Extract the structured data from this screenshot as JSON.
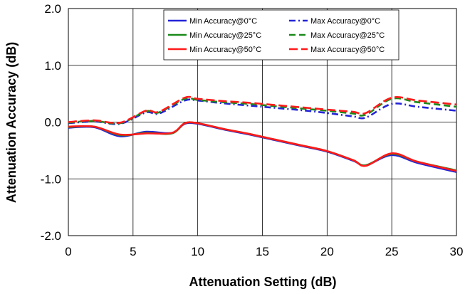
{
  "chart_data": {
    "type": "line",
    "title": "",
    "xlabel": "Attenuation Setting (dB)",
    "ylabel": "Attenuation Accuracy (dB)",
    "xlim": [
      0,
      30
    ],
    "ylim": [
      -2,
      2
    ],
    "xticks": [
      "0",
      "5",
      "10",
      "15",
      "20",
      "25",
      "30"
    ],
    "yticks": [
      "2.0",
      "1.0",
      "0.0",
      "-1.0",
      "-2.0"
    ],
    "grid": true,
    "legend_position": "top-right",
    "series": [
      {
        "name": "Min Accuracy@0°C",
        "color": "#2424d8",
        "dash": "solid",
        "x": [
          0,
          2,
          4,
          6,
          8,
          9,
          10,
          12,
          14,
          16,
          18,
          20,
          22,
          23,
          25,
          27,
          30
        ],
        "y": [
          -0.1,
          -0.09,
          -0.25,
          -0.17,
          -0.19,
          -0.03,
          -0.03,
          -0.13,
          -0.22,
          -0.32,
          -0.42,
          -0.52,
          -0.68,
          -0.76,
          -0.58,
          -0.72,
          -0.88
        ]
      },
      {
        "name": "Min Accuracy@25°C",
        "color": "#1a8a1a",
        "dash": "solid",
        "x": [
          0,
          2,
          4,
          6,
          8,
          9,
          10,
          12,
          14,
          16,
          18,
          20,
          22,
          23,
          25,
          27,
          30
        ],
        "y": [
          -0.09,
          -0.08,
          -0.23,
          -0.19,
          -0.2,
          -0.02,
          -0.02,
          -0.12,
          -0.21,
          -0.31,
          -0.41,
          -0.51,
          -0.67,
          -0.76,
          -0.56,
          -0.7,
          -0.85
        ]
      },
      {
        "name": "Min Accuracy@50°C",
        "color": "#ff1a1a",
        "dash": "solid",
        "x": [
          0,
          2,
          4,
          6,
          8,
          9,
          10,
          12,
          14,
          16,
          18,
          20,
          22,
          23,
          25,
          27,
          30
        ],
        "y": [
          -0.08,
          -0.08,
          -0.22,
          -0.2,
          -0.19,
          -0.02,
          -0.02,
          -0.12,
          -0.21,
          -0.31,
          -0.41,
          -0.51,
          -0.67,
          -0.77,
          -0.55,
          -0.7,
          -0.86
        ]
      },
      {
        "name": "Max Accuracy@0°C",
        "color": "#2424d8",
        "dash": "dashdot",
        "x": [
          0,
          2,
          4,
          6,
          7,
          9,
          10,
          12,
          14,
          16,
          18,
          20,
          22,
          23,
          25,
          27,
          30
        ],
        "y": [
          -0.02,
          0.01,
          -0.03,
          0.17,
          0.15,
          0.38,
          0.38,
          0.33,
          0.29,
          0.25,
          0.21,
          0.16,
          0.1,
          0.08,
          0.32,
          0.27,
          0.2
        ]
      },
      {
        "name": "Max Accuracy@25°C",
        "color": "#1a8a1a",
        "dash": "dashed",
        "x": [
          0,
          2,
          4,
          6,
          7,
          9,
          10,
          12,
          14,
          16,
          18,
          20,
          22,
          23,
          25,
          27,
          30
        ],
        "y": [
          -0.01,
          0.02,
          -0.02,
          0.19,
          0.17,
          0.41,
          0.39,
          0.35,
          0.32,
          0.28,
          0.24,
          0.2,
          0.15,
          0.13,
          0.41,
          0.35,
          0.27
        ]
      },
      {
        "name": "Max Accuracy@50°C",
        "color": "#ff1a1a",
        "dash": "longdash",
        "x": [
          0,
          2,
          4,
          6,
          7,
          9,
          10,
          12,
          14,
          16,
          18,
          20,
          22,
          23,
          25,
          27,
          30
        ],
        "y": [
          0.0,
          0.03,
          -0.01,
          0.2,
          0.18,
          0.43,
          0.41,
          0.37,
          0.34,
          0.3,
          0.26,
          0.22,
          0.18,
          0.16,
          0.43,
          0.38,
          0.31
        ]
      }
    ]
  }
}
